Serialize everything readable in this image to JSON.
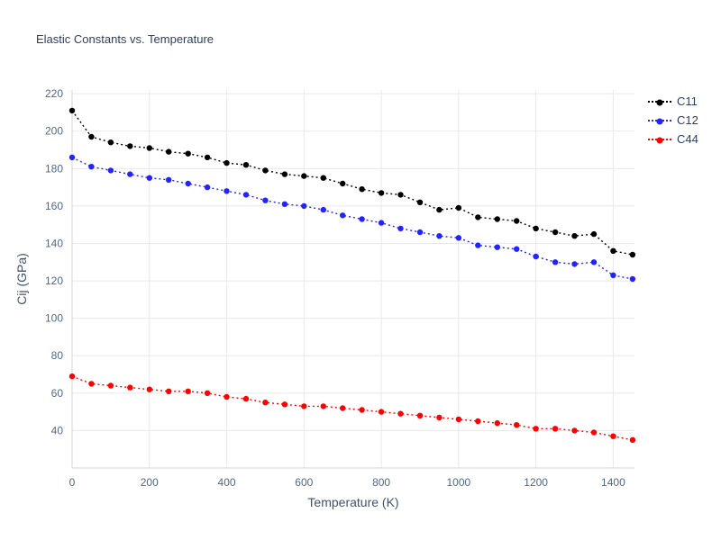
{
  "colors": {
    "title": "#2a3f5f",
    "axis_labels": "#42526b",
    "tick_labels": "#506784",
    "grid": "#e8e8e8",
    "axis_line": "#d6d6d6",
    "background": "#ffffff"
  },
  "chart_data": {
    "type": "line",
    "title": "Elastic Constants vs. Temperature",
    "xlabel": "Temperature (K)",
    "ylabel": "Cij (GPa)",
    "xlim": [
      0,
      1455
    ],
    "ylim": [
      20,
      222
    ],
    "xticks": [
      0,
      200,
      400,
      600,
      800,
      1000,
      1200,
      1400
    ],
    "yticks": [
      40,
      60,
      80,
      100,
      120,
      140,
      160,
      180,
      200,
      220
    ],
    "grid": true,
    "legend_position": "top-right-outside",
    "marker_style": "dotted-line-with-circles",
    "x": [
      0,
      50,
      100,
      150,
      200,
      250,
      300,
      350,
      400,
      450,
      500,
      550,
      600,
      650,
      700,
      750,
      800,
      850,
      900,
      950,
      1000,
      1050,
      1100,
      1150,
      1200,
      1250,
      1300,
      1350,
      1400,
      1450
    ],
    "series": [
      {
        "name": "C11",
        "color": "#000000",
        "values": [
          211,
          197,
          194,
          192,
          191,
          189,
          188,
          186,
          183,
          182,
          179,
          177,
          176,
          175,
          172,
          169,
          167,
          166,
          162,
          158,
          159,
          154,
          153,
          152,
          148,
          146,
          144,
          145,
          136,
          134
        ]
      },
      {
        "name": "C12",
        "color": "#2323ff",
        "values": [
          186,
          181,
          179,
          177,
          175,
          174,
          172,
          170,
          168,
          166,
          163,
          161,
          160,
          158,
          155,
          153,
          151,
          148,
          146,
          144,
          143,
          139,
          138,
          137,
          133,
          130,
          129,
          130,
          123,
          121
        ]
      },
      {
        "name": "C44",
        "color": "#ff0000",
        "values": [
          69,
          65,
          64,
          63,
          62,
          61,
          61,
          60,
          58,
          57,
          55,
          54,
          53,
          53,
          52,
          51,
          50,
          49,
          48,
          47,
          46,
          45,
          44,
          43,
          41,
          41,
          40,
          39,
          37,
          35
        ]
      }
    ]
  }
}
